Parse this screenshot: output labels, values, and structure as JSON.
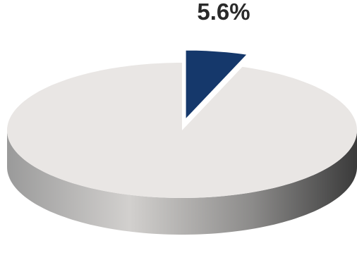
{
  "chart_data": {
    "type": "pie",
    "style": "3d-exploded",
    "slices": [
      {
        "value": 5.6,
        "label": "5.6%",
        "color": "#15386b",
        "exploded": true
      },
      {
        "value": 94.4,
        "label": "",
        "color": "#e9e6e4",
        "exploded": false
      }
    ]
  },
  "colors": {
    "background": "#ffffff",
    "highlight_slice_top": "#15386b",
    "highlight_slice_side": "#0c2447",
    "main_slice_top": "#e9e6e4",
    "main_slice_side_light": "#c9c7c5",
    "main_slice_side_dark": "#3e3e3e",
    "label_text": "#2a2a2a"
  }
}
